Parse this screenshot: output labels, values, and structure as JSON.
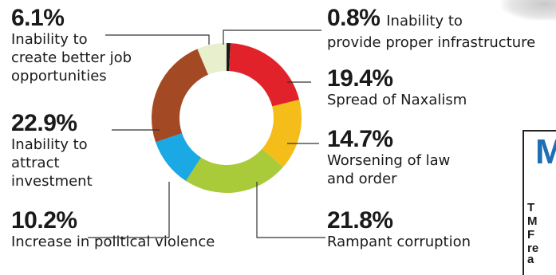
{
  "chart_data": {
    "type": "pie",
    "variant": "donut",
    "title": "",
    "slices": [
      {
        "label": "Inability to provide proper infrastructure",
        "value": 0.8,
        "pct_text": "0.8%",
        "color": "#1a1a1a"
      },
      {
        "label": "Spread of Naxalism",
        "value": 19.4,
        "pct_text": "19.4%",
        "color": "#e2222a"
      },
      {
        "label": "Worsening of law and order",
        "value": 14.7,
        "pct_text": "14.7%",
        "color": "#f5bd19"
      },
      {
        "label": "Rampant corruption",
        "value": 21.8,
        "pct_text": "21.8%",
        "color": "#a9cb3a"
      },
      {
        "label": "Increase in political violence",
        "value": 10.2,
        "pct_text": "10.2%",
        "color": "#1aa9e4"
      },
      {
        "label": "Inability to attract investment",
        "value": 22.9,
        "pct_text": "22.9%",
        "color": "#a34a24"
      },
      {
        "label": "Inability to create better job opportunities",
        "value": 6.1,
        "pct_text": "6.1%",
        "color": "#e7efcd"
      }
    ]
  },
  "labels": {
    "jobs": {
      "pct": "6.1%",
      "lines": [
        "Inability to",
        "create better job",
        "opportunities"
      ]
    },
    "investment": {
      "pct": "22.9%",
      "lines": [
        "Inability to",
        "attract",
        "investment"
      ]
    },
    "violence": {
      "pct": "10.2%",
      "lines": [
        "Increase in political violence"
      ]
    },
    "infrastructure": {
      "pct": "0.8%",
      "inline": "Inability to",
      "lines": [
        "provide proper infrastructure"
      ]
    },
    "naxalism": {
      "pct": "19.4%",
      "lines": [
        "Spread of Naxalism"
      ]
    },
    "law": {
      "pct": "14.7%",
      "lines": [
        "Worsening of law",
        "and order"
      ]
    },
    "corruption": {
      "pct": "21.8%",
      "lines": [
        "Rampant corruption"
      ]
    }
  },
  "side_panel": {
    "initial": "M",
    "lines": [
      "T",
      "M",
      "F",
      "re",
      "a"
    ],
    "initial_color": "#1f6fb3"
  }
}
